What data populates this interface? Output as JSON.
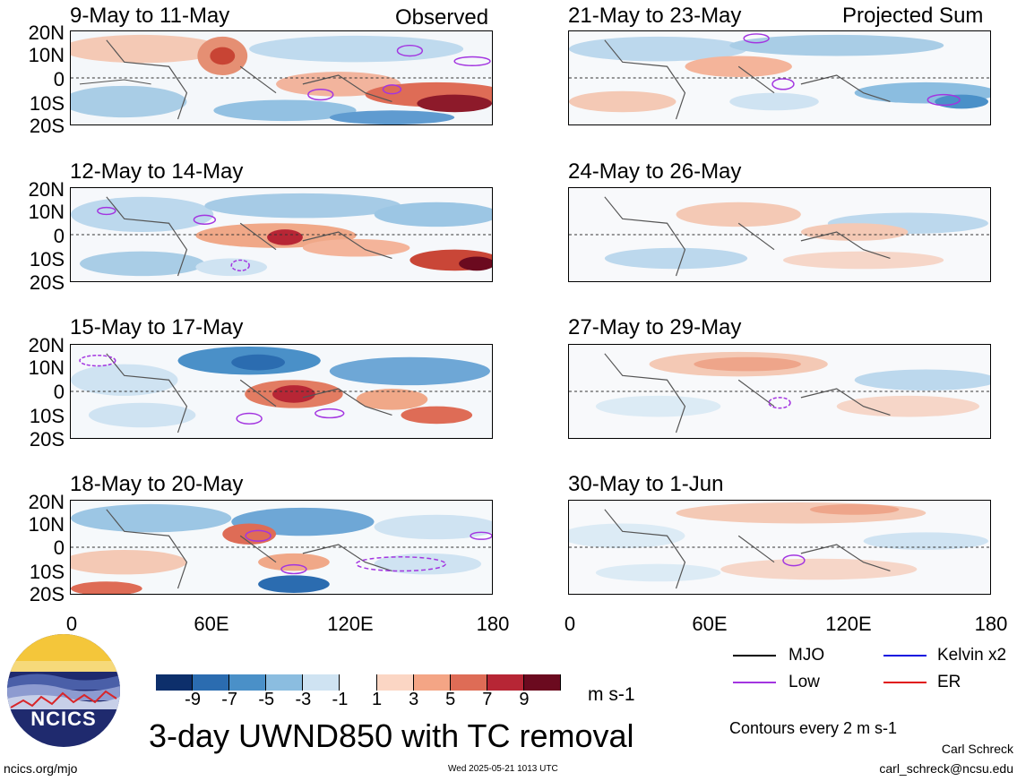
{
  "panels_left": [
    {
      "title": "9-May to 11-May",
      "tag": "Observed"
    },
    {
      "title": "12-May to 14-May",
      "tag": ""
    },
    {
      "title": "15-May to 17-May",
      "tag": ""
    },
    {
      "title": "18-May to 20-May",
      "tag": ""
    }
  ],
  "panels_right": [
    {
      "title": "21-May to 23-May",
      "tag": "Projected Sum"
    },
    {
      "title": "24-May to 26-May",
      "tag": ""
    },
    {
      "title": "27-May to 29-May",
      "tag": ""
    },
    {
      "title": "30-May to 1-Jun",
      "tag": ""
    }
  ],
  "lat_labels": [
    "20N",
    "10N",
    "0",
    "10S",
    "20S"
  ],
  "lon_labels": [
    "0",
    "60E",
    "120E",
    "180"
  ],
  "colorbar": {
    "colors": [
      "#0d2f6b",
      "#2b6cb0",
      "#4a90c8",
      "#8bbde0",
      "#cfe3f2",
      "#ffffff",
      "#fbd6c4",
      "#f4a585",
      "#de6c56",
      "#b72635",
      "#6b0a1f"
    ],
    "ticks": [
      "-9",
      "-7",
      "-5",
      "-3",
      "-1",
      "1",
      "3",
      "5",
      "7",
      "9"
    ],
    "units": "m s-1"
  },
  "legend": {
    "mjo": {
      "label": "MJO",
      "color": "#000000"
    },
    "low": {
      "label": "Low",
      "color": "#a335e0"
    },
    "kelvin": {
      "label": "Kelvin x2",
      "color": "#1010e0"
    },
    "er": {
      "label": "ER",
      "color": "#e01010"
    }
  },
  "main_title": "3-day UWND850 with TC removal",
  "contours_note": "Contours every 2 m s-1",
  "logo_text": "NCICS",
  "footer": {
    "left": "ncics.org/mjo",
    "center": "Wed 2025-05-21 1013 UTC",
    "author": "Carl Schreck",
    "email": "carl_schreck@ncsu.edu"
  }
}
